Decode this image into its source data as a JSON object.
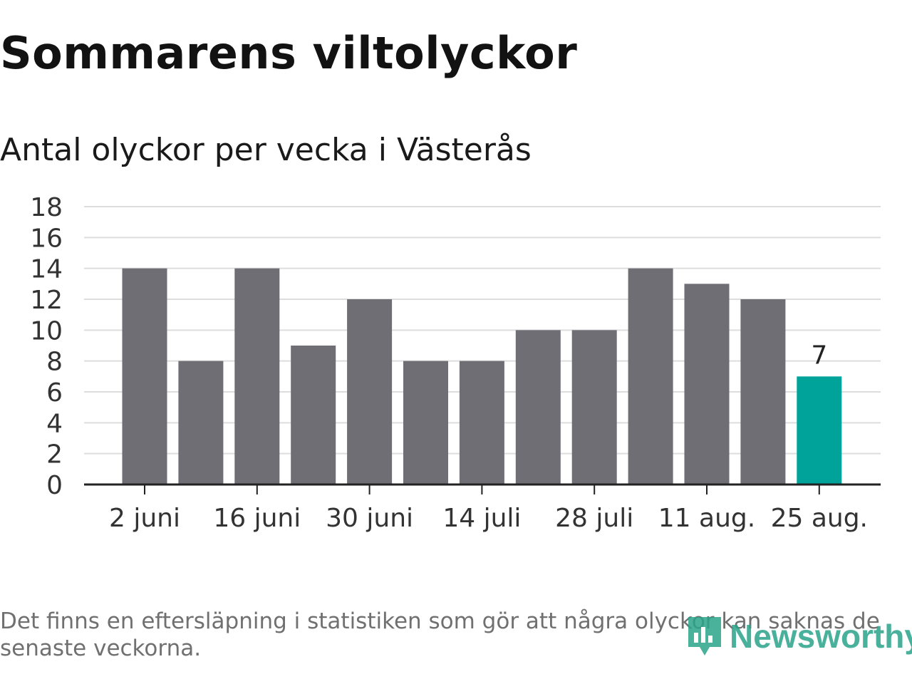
{
  "title": "Sommarens viltolyckor",
  "subtitle": "Antal olyckor per vecka i Västerås",
  "footnote": "Det finns en eftersläpning i statistiken som gör att några olyckor kan saknas de senaste veckorna.",
  "brand": {
    "name": "Newsworthy",
    "icon": "newsworthy-logo-icon"
  },
  "colors": {
    "bar": "#6f6e75",
    "highlight": "#00a39a",
    "grid": "#dddddd",
    "axis": "#222222"
  },
  "chart_data": {
    "type": "bar",
    "x_tick_labels": [
      "2 juni",
      "16 juni",
      "30 juni",
      "14 juli",
      "28 juli",
      "11 aug.",
      "25 aug."
    ],
    "values": [
      14,
      8,
      14,
      9,
      12,
      8,
      8,
      10,
      10,
      14,
      13,
      12,
      7
    ],
    "highlight_index": 12,
    "data_labels": [
      {
        "index": 12,
        "text": "7"
      }
    ],
    "y_ticks": [
      0,
      2,
      4,
      6,
      8,
      10,
      12,
      14,
      16,
      18
    ],
    "ylim": [
      0,
      18
    ],
    "grid": true,
    "xlabel": "",
    "ylabel": ""
  }
}
